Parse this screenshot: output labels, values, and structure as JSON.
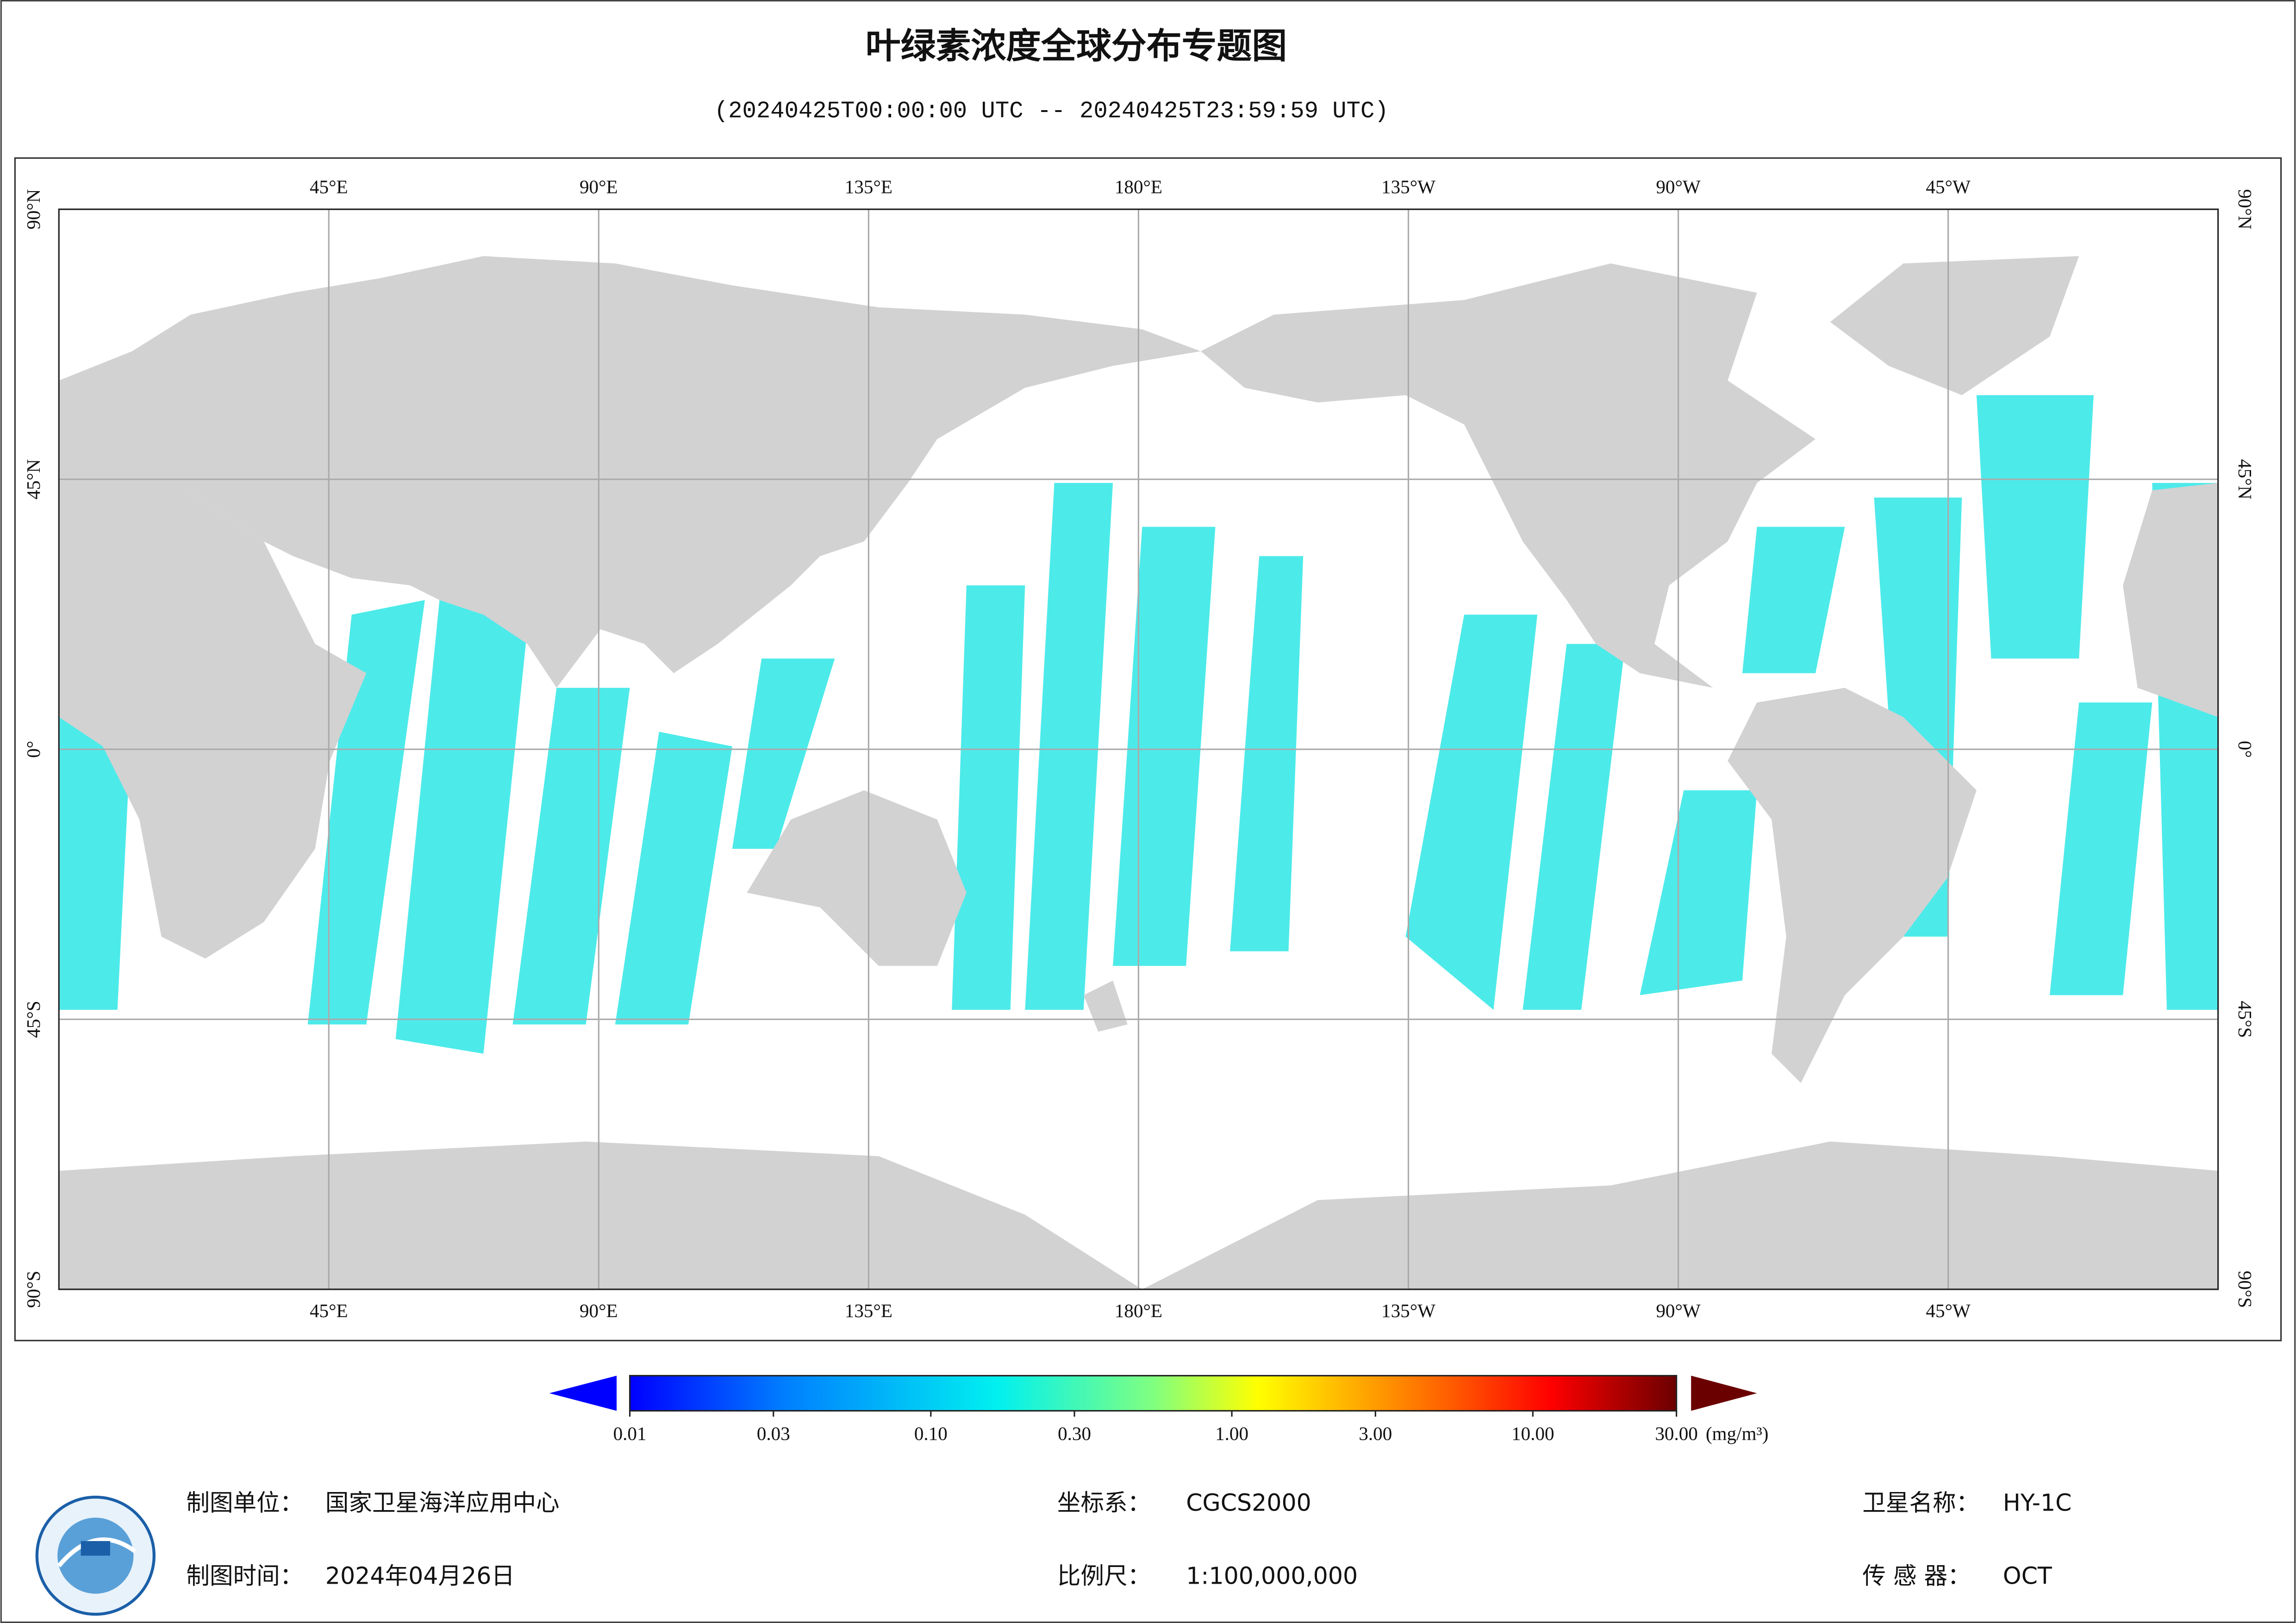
{
  "header": {
    "title": "叶绿素浓度全球分布专题图",
    "subtitle": "(20240425T00:00:00 UTC -- 20240425T23:59:59 UTC)"
  },
  "map": {
    "lonlim": [
      0,
      360
    ],
    "latlim": [
      -90,
      90
    ],
    "grid": true,
    "lon_ticks": [
      {
        "value": 45,
        "label": "45°E"
      },
      {
        "value": 90,
        "label": "90°E"
      },
      {
        "value": 135,
        "label": "135°E"
      },
      {
        "value": 180,
        "label": "180°E"
      },
      {
        "value": 225,
        "label": "135°W"
      },
      {
        "value": 270,
        "label": "90°W"
      },
      {
        "value": 315,
        "label": "45°W"
      }
    ],
    "lat_ticks": [
      {
        "value": 90,
        "label": "90°N"
      },
      {
        "value": 45,
        "label": "45°N"
      },
      {
        "value": 0,
        "label": "0°"
      },
      {
        "value": -45,
        "label": "45°S"
      },
      {
        "value": -90,
        "label": "90°S"
      }
    ]
  },
  "colorbar": {
    "lim": [
      0.01,
      30
    ],
    "log": true,
    "unit": "(mg/m³)",
    "ticks": [
      0.01,
      0.03,
      {
        "value": 0.1,
        "label": "0.10"
      },
      {
        "value": 0.3,
        "label": "0.30"
      },
      {
        "value": 1,
        "label": "1.00"
      },
      {
        "value": 3,
        "label": "3.00"
      },
      {
        "value": 10,
        "label": "10.00"
      },
      {
        "value": 30,
        "label": "30.00"
      }
    ]
  },
  "footer": {
    "items": [
      {
        "label": "制图单位：",
        "value": "国家卫星海洋应用中心"
      },
      {
        "label": "坐标系：",
        "value": "CGCS2000"
      },
      {
        "label": "卫星名称：",
        "value": "HY-1C"
      },
      {
        "label": "制图时间：",
        "value": "2024年04月26日"
      },
      {
        "label": "比例尺：",
        "value": "1:100,000,000"
      },
      {
        "label": "传 感 器：",
        "value": "OCT"
      }
    ]
  }
}
